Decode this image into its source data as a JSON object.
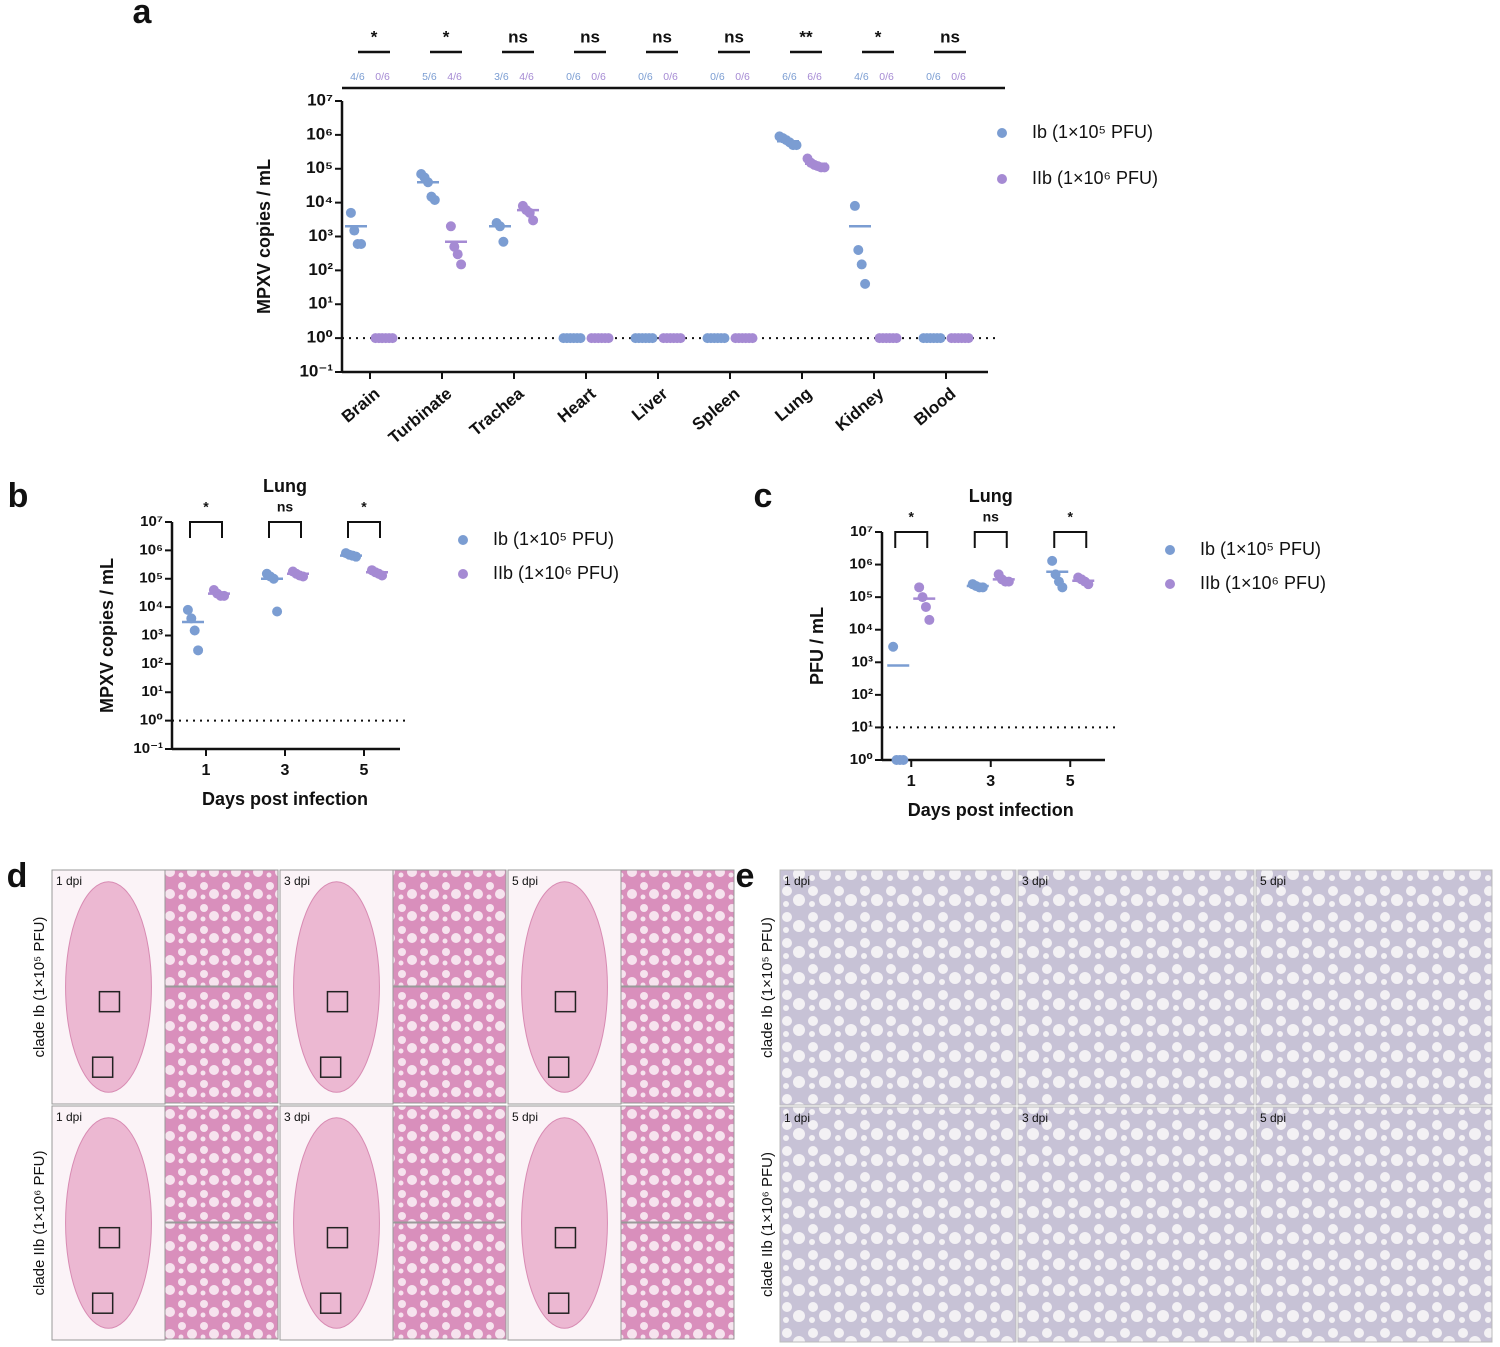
{
  "chart_data": [
    {
      "type": "scatter",
      "panel": "a",
      "y_label": "MPXV copies / mL",
      "yscale": "log",
      "categories": [
        "Brain",
        "Turbinate",
        "Trachea",
        "Heart",
        "Liver",
        "Spleen",
        "Lung",
        "Kidney",
        "Blood"
      ],
      "ylim": [
        0.1,
        10000000
      ],
      "yticks": [
        {
          "value": 10000000,
          "label": "10⁷"
        },
        {
          "value": 1000000,
          "label": "10⁶"
        },
        {
          "value": 100000,
          "label": "10⁵"
        },
        {
          "value": 10000,
          "label": "10⁴"
        },
        {
          "value": 1000,
          "label": "10³"
        },
        {
          "value": 100,
          "label": "10²"
        },
        {
          "value": 10,
          "label": "10¹"
        },
        {
          "value": 1,
          "label": "10⁰"
        },
        {
          "value": 0.1,
          "label": "10⁻¹"
        }
      ],
      "detection_limit": 1,
      "significance": [
        "*",
        "*",
        "ns",
        "ns",
        "ns",
        "ns",
        "**",
        "*",
        "ns"
      ],
      "series": [
        {
          "name": "Ib (1×10⁵ PFU)",
          "color": "#7b9dd2",
          "values": [
            [
              5000,
              1500,
              600,
              600
            ],
            [
              70000,
              55000,
              40000,
              15000,
              12000
            ],
            [
              2500,
              2000,
              700
            ],
            [
              1,
              1,
              1,
              1,
              1,
              1
            ],
            [
              1,
              1,
              1,
              1,
              1,
              1
            ],
            [
              1,
              1,
              1,
              1,
              1,
              1
            ],
            [
              900000,
              800000,
              700000,
              600000,
              500000,
              500000
            ],
            [
              8000,
              400,
              150,
              40
            ],
            [
              1,
              1,
              1,
              1,
              1,
              1
            ]
          ],
          "means": [
            2000,
            40000,
            2000,
            null,
            null,
            null,
            650000,
            2000,
            null
          ],
          "ratio_labels": [
            "4/6",
            "5/6",
            "3/6",
            "0/6",
            "0/6",
            "0/6",
            "6/6",
            "4/6",
            "0/6"
          ]
        },
        {
          "name": "IIb (1×10⁶ PFU)",
          "color": "#a58ad3",
          "values": [
            [
              1,
              1,
              1,
              1,
              1,
              1
            ],
            [
              2000,
              500,
              300,
              150
            ],
            [
              8000,
              6000,
              5000,
              3000
            ],
            [
              1,
              1,
              1,
              1,
              1,
              1
            ],
            [
              1,
              1,
              1,
              1,
              1,
              1
            ],
            [
              1,
              1,
              1,
              1,
              1,
              1
            ],
            [
              200000,
              150000,
              130000,
              120000,
              110000,
              110000
            ],
            [
              1,
              1,
              1,
              1,
              1,
              1
            ],
            [
              1,
              1,
              1,
              1,
              1,
              1
            ]
          ],
          "means": [
            null,
            700,
            6000,
            null,
            null,
            null,
            140000,
            null,
            null
          ],
          "ratio_labels": [
            "0/6",
            "4/6",
            "4/6",
            "0/6",
            "0/6",
            "0/6",
            "6/6",
            "0/6",
            "0/6"
          ]
        }
      ]
    },
    {
      "type": "scatter",
      "panel": "b",
      "title": "Lung",
      "x_label": "Days post infection",
      "y_label": "MPXV copies / mL",
      "yscale": "log",
      "categories": [
        "1",
        "3",
        "5"
      ],
      "ylim": [
        0.1,
        10000000
      ],
      "yticks": [
        {
          "value": 10000000,
          "label": "10⁷"
        },
        {
          "value": 1000000,
          "label": "10⁶"
        },
        {
          "value": 100000,
          "label": "10⁵"
        },
        {
          "value": 10000,
          "label": "10⁴"
        },
        {
          "value": 1000,
          "label": "10³"
        },
        {
          "value": 100,
          "label": "10²"
        },
        {
          "value": 10,
          "label": "10¹"
        },
        {
          "value": 1,
          "label": "10⁰"
        },
        {
          "value": 0.1,
          "label": "10⁻¹"
        }
      ],
      "detection_limit": 1,
      "significance": [
        "*",
        "ns",
        "*"
      ],
      "series": [
        {
          "name": "Ib (1×10⁵ PFU)",
          "color": "#7b9dd2",
          "values": [
            [
              8000,
              4000,
              1500,
              300
            ],
            [
              150000,
              120000,
              100000,
              7000
            ],
            [
              800000,
              700000,
              650000,
              600000
            ]
          ],
          "means": [
            3000,
            100000,
            650000
          ]
        },
        {
          "name": "IIb (1×10⁶ PFU)",
          "color": "#a58ad3",
          "values": [
            [
              40000,
              30000,
              25000,
              25000
            ],
            [
              180000,
              150000,
              130000,
              120000
            ],
            [
              200000,
              170000,
              150000,
              130000
            ]
          ],
          "means": [
            30000,
            150000,
            170000
          ]
        }
      ]
    },
    {
      "type": "scatter",
      "panel": "c",
      "title": "Lung",
      "x_label": "Days post infection",
      "y_label": "PFU / mL",
      "yscale": "log",
      "categories": [
        "1",
        "3",
        "5"
      ],
      "ylim": [
        1,
        10000000
      ],
      "yticks": [
        {
          "value": 10000000,
          "label": "10⁷"
        },
        {
          "value": 1000000,
          "label": "10⁶"
        },
        {
          "value": 100000,
          "label": "10⁵"
        },
        {
          "value": 10000,
          "label": "10⁴"
        },
        {
          "value": 1000,
          "label": "10³"
        },
        {
          "value": 100,
          "label": "10²"
        },
        {
          "value": 10,
          "label": "10¹"
        },
        {
          "value": 1,
          "label": "10⁰"
        }
      ],
      "detection_limit": 10,
      "significance": [
        "*",
        "ns",
        "*"
      ],
      "series": [
        {
          "name": "Ib (1×10⁵ PFU)",
          "color": "#7b9dd2",
          "values": [
            [
              3000,
              1,
              1,
              1
            ],
            [
              250000,
              220000,
              200000,
              200000
            ],
            [
              1300000,
              500000,
              300000,
              200000
            ]
          ],
          "means": [
            800,
            220000,
            600000
          ]
        },
        {
          "name": "IIb (1×10⁶ PFU)",
          "color": "#a58ad3",
          "values": [
            [
              200000,
              100000,
              50000,
              20000
            ],
            [
              500000,
              350000,
              300000,
              300000
            ],
            [
              400000,
              350000,
              300000,
              250000
            ]
          ],
          "means": [
            90000,
            350000,
            320000
          ]
        }
      ]
    }
  ],
  "he_panel": {
    "panel": "d",
    "columns": [
      "1 dpi",
      "3 dpi",
      "5 dpi"
    ],
    "rows": [
      "clade Ib (1×10⁵ PFU)",
      "clade IIb (1×10⁶ PFU)"
    ]
  },
  "ihc_panel": {
    "panel": "e",
    "columns": [
      "1 dpi",
      "3 dpi",
      "5 dpi"
    ],
    "rows": [
      "clade Ib (1×10⁵ PFU)",
      "clade IIb (1×10⁶ PFU)"
    ]
  }
}
